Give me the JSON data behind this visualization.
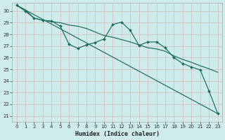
{
  "xlabel": "Humidex (Indice chaleur)",
  "bg_color": "#ceecea",
  "grid_color_major": "#c8b8b8",
  "grid_color_minor": "#ddecea",
  "line_color": "#1a6b60",
  "xlim": [
    -0.5,
    23.5
  ],
  "ylim": [
    20.5,
    30.7
  ],
  "xtick_labels": [
    "0",
    "1",
    "2",
    "3",
    "4",
    "5",
    "6",
    "7",
    "8",
    "9",
    "10",
    "11",
    "12",
    "13",
    "14",
    "15",
    "16",
    "17",
    "18",
    "19",
    "20",
    "21",
    "22",
    "23"
  ],
  "yticks": [
    21,
    22,
    23,
    24,
    25,
    26,
    27,
    28,
    29,
    30
  ],
  "series_wavy_x": [
    0,
    1,
    2,
    3,
    4,
    5,
    6,
    7,
    8,
    9,
    10,
    11,
    12,
    13,
    14,
    15,
    16,
    17,
    18,
    19,
    20,
    21,
    22,
    23
  ],
  "series_wavy_y": [
    30.5,
    30.0,
    29.4,
    29.2,
    29.15,
    28.7,
    27.15,
    26.8,
    27.1,
    27.3,
    27.6,
    28.85,
    29.05,
    28.35,
    27.05,
    27.35,
    27.35,
    26.85,
    26.0,
    25.5,
    25.2,
    24.95,
    23.15,
    21.2
  ],
  "series_line1_x": [
    0,
    2,
    23
  ],
  "series_line1_y": [
    30.5,
    29.4,
    24.7
  ],
  "series_line2_x": [
    0,
    23
  ],
  "series_line2_y": [
    30.5,
    21.2
  ],
  "series_smooth_x": [
    0,
    1,
    2,
    3,
    4,
    5,
    6,
    7,
    8,
    9,
    10,
    11,
    12,
    13,
    14,
    15,
    16,
    17,
    18,
    19,
    20,
    21,
    22,
    23
  ],
  "series_smooth_y": [
    30.5,
    30.1,
    29.4,
    29.2,
    29.1,
    29.0,
    28.8,
    28.7,
    28.5,
    28.2,
    27.9,
    27.75,
    27.55,
    27.35,
    27.1,
    26.85,
    26.75,
    26.55,
    26.15,
    25.85,
    25.6,
    25.3,
    25.05,
    24.75
  ]
}
